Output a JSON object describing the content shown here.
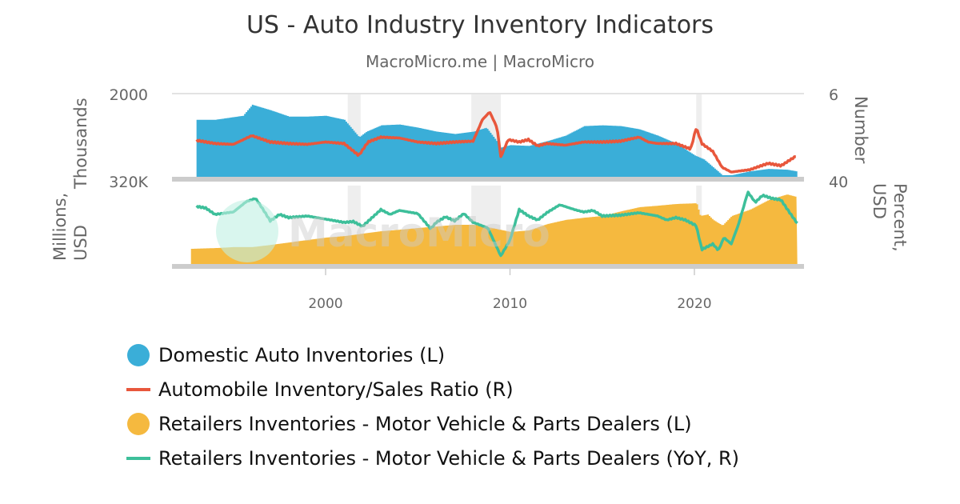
{
  "title": "US - Auto Industry Inventory Indicators",
  "subtitle": "MacroMicro.me | MacroMicro",
  "watermark": "MacroMicro",
  "chart_data": {
    "type": "line",
    "x_ticks": [
      "2000",
      "2010",
      "2020"
    ],
    "xlim": [
      1992.4,
      2026
    ],
    "grid": "horizontal top line only",
    "legend_position": "bottom",
    "recessions": [
      [
        2001.2,
        2001.9
      ],
      [
        2007.9,
        2009.5
      ],
      [
        2020.1,
        2020.4
      ]
    ],
    "panels": [
      {
        "left_axis": {
          "label": "Thousands",
          "ticks": [
            "2000"
          ],
          "range": [
            0,
            2000
          ]
        },
        "right_axis": {
          "label": "Number",
          "ticks": [
            "6"
          ],
          "range": [
            0,
            6
          ]
        },
        "series": [
          {
            "name": "Domestic Auto Inventories (L)",
            "type": "bar",
            "axis": "left",
            "color": "#3aaed8",
            "x": [
              1993.0,
              1994,
              1995.5,
              1996,
              1997,
              1998,
              1999,
              2000,
              2001,
              2001.8,
              2002.2,
              2003,
              2004,
              2005,
              2006,
              2007,
              2008,
              2008.7,
              2009.2,
              2009.5,
              2010,
              2011,
              2012,
              2013,
              2014,
              2015,
              2016,
              2017,
              2018,
              2019,
              2020,
              2020.5,
              2021,
              2021.5,
              2022,
              2023,
              2024,
              2025,
              2025.5
            ],
            "y": [
              1371,
              1371,
              1467,
              1733,
              1600,
              1448,
              1448,
              1467,
              1371,
              952,
              1086,
              1238,
              1257,
              1181,
              1086,
              1029,
              1086,
              1181,
              895,
              705,
              762,
              743,
              857,
              990,
              1219,
              1238,
              1219,
              1143,
              990,
              800,
              514,
              419,
              229,
              38,
              38,
              133,
              190,
              171,
              133
            ]
          },
          {
            "name": "Automobile Inventory/Sales Ratio (R)",
            "type": "line",
            "axis": "right",
            "color": "#e8573c",
            "x": [
              1993,
              1994,
              1995,
              1996,
              1997,
              1998,
              1999,
              2000,
              2001,
              2001.8,
              2002.3,
              2003,
              2004,
              2005,
              2006,
              2007,
              2008,
              2008.5,
              2008.9,
              2009.3,
              2009.5,
              2009.9,
              2010.5,
              2011,
              2011.5,
              2012,
              2013,
              2014,
              2015,
              2016,
              2017,
              2017.5,
              2018,
              2019,
              2019.8,
              2020.1,
              2020.4,
              2021,
              2021.5,
              2022,
              2023,
              2024,
              2024.7,
              2025.5
            ],
            "y": [
              2.63,
              2.4,
              2.34,
              2.97,
              2.51,
              2.4,
              2.34,
              2.51,
              2.4,
              1.54,
              2.51,
              2.86,
              2.8,
              2.51,
              2.4,
              2.51,
              2.57,
              4.11,
              4.68,
              3.54,
              1.43,
              2.68,
              2.51,
              2.68,
              2.23,
              2.4,
              2.28,
              2.51,
              2.51,
              2.57,
              2.86,
              2.51,
              2.4,
              2.4,
              2.0,
              3.54,
              2.4,
              1.83,
              0.69,
              0.34,
              0.51,
              0.97,
              0.8,
              1.48
            ]
          }
        ]
      },
      {
        "left_axis": {
          "label": "Millions, USD",
          "ticks": [
            "320K"
          ],
          "range": [
            0,
            320000
          ]
        },
        "right_axis": {
          "label": "Percent, USD",
          "ticks": [
            "40"
          ],
          "range": [
            -25,
            40
          ]
        },
        "series": [
          {
            "name": "Retailers Inventories - Motor Vehicle & Parts Dealers (L)",
            "type": "bar",
            "axis": "left",
            "color": "#f5b93f",
            "x": [
              1992.7,
              1994,
              1995,
              1996,
              1997,
              1998,
              1999,
              2000,
              2001,
              2002,
              2003,
              2004,
              2005,
              2006,
              2007,
              2008,
              2009,
              2010,
              2011,
              2012,
              2013,
              2014,
              2015,
              2016,
              2017,
              2018,
              2019,
              2020.1,
              2020.3,
              2020.7,
              2021,
              2021.5,
              2022,
              2023,
              2024,
              2025,
              2025.5
            ],
            "y": [
              62000,
              65000,
              69000,
              69000,
              78000,
              88000,
              98000,
              108000,
              114000,
              124000,
              134000,
              140000,
              147000,
              153000,
              160000,
              160000,
              147000,
              131000,
              137000,
              163000,
              180000,
              189000,
              196000,
              215000,
              232000,
              238000,
              245000,
              248000,
              196000,
              202000,
              180000,
              157000,
              196000,
              222000,
              261000,
              284000,
              274000
            ]
          },
          {
            "name": "Retailers Inventories - Motor Vehicle & Parts Dealers (YoY, R)",
            "type": "line",
            "axis": "right",
            "color": "#3dbf9a",
            "x": [
              1993,
              1993.5,
              1994,
              1995,
              1995.7,
              1996.2,
              1996.5,
              1997,
              1997.5,
              1998,
              1999,
              2000,
              2001,
              2001.5,
              2002,
              2003,
              2003.5,
              2004,
              2005,
              2005.7,
              2006,
              2006.5,
              2007,
              2007.5,
              2008,
              2008.8,
              2009.5,
              2010,
              2010.5,
              2011,
              2011.5,
              2012,
              2012.7,
              2013.5,
              2014,
              2014.5,
              2015,
              2016,
              2017,
              2018,
              2018.5,
              2019,
              2019.5,
              2020.1,
              2020.4,
              2021,
              2021.3,
              2021.6,
              2022,
              2022.4,
              2022.9,
              2023.3,
              2023.7,
              2024.2,
              2024.7,
              2025.2,
              2025.6
            ],
            "y": [
              22.8,
              21.4,
              16.1,
              18.1,
              26.7,
              29.4,
              22.8,
              10.8,
              16.1,
              13.5,
              14.8,
              12.2,
              9.5,
              10.2,
              6.2,
              20.1,
              16.1,
              19.4,
              16.8,
              4.2,
              9.5,
              14.1,
              10.8,
              16.8,
              9.5,
              4.9,
              -18.3,
              -5.1,
              20.1,
              14.8,
              11.5,
              17.5,
              24.1,
              20.1,
              18.1,
              19.4,
              14.8,
              15.5,
              17.5,
              14.8,
              11.5,
              13.5,
              11.5,
              6.8,
              -13.0,
              -8.4,
              -13.7,
              -3.1,
              -8.4,
              8.2,
              34.7,
              26.1,
              32.0,
              29.4,
              28.1,
              16.8,
              8.2
            ]
          }
        ]
      }
    ]
  },
  "legend": [
    {
      "label": "Domestic Auto Inventories (L)",
      "marker": "circle",
      "color": "#3aaed8"
    },
    {
      "label": "Automobile Inventory/Sales Ratio (R)",
      "marker": "line",
      "color": "#e8573c"
    },
    {
      "label": "Retailers Inventories - Motor Vehicle & Parts Dealers (L)",
      "marker": "circle",
      "color": "#f5b93f"
    },
    {
      "label": "Retailers Inventories - Motor Vehicle & Parts Dealers (YoY, R)",
      "marker": "line",
      "color": "#3dbf9a"
    }
  ]
}
